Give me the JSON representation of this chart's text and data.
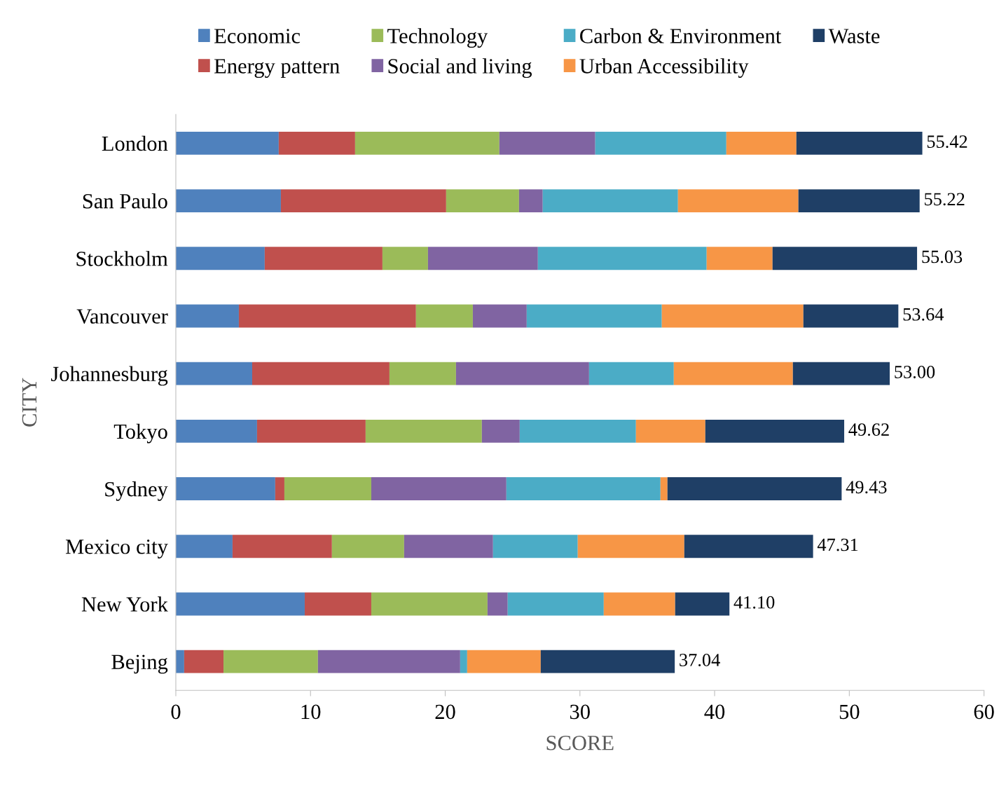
{
  "chart_data": {
    "type": "bar",
    "orientation": "horizontal",
    "stacked": true,
    "xlabel": "SCORE",
    "ylabel": "CITY",
    "categories": [
      "London",
      "San Paulo",
      "Stockholm",
      "Vancouver",
      "Johannesburg",
      "Tokyo",
      "Sydney",
      "Mexico city",
      "New York",
      "Bejing"
    ],
    "series": [
      {
        "name": "Economic",
        "color": "#4f81bd",
        "values": [
          7.64,
          7.8,
          6.6,
          4.68,
          5.67,
          6.03,
          7.38,
          4.21,
          9.57,
          0.62
        ]
      },
      {
        "name": "Energy pattern",
        "color": "#c0504d",
        "values": [
          5.67,
          12.27,
          8.74,
          13.15,
          10.19,
          8.06,
          0.68,
          7.38,
          4.94,
          2.92
        ]
      },
      {
        "name": "Technology",
        "color": "#9bbb59",
        "values": [
          10.71,
          5.41,
          3.38,
          4.22,
          4.94,
          8.63,
          6.45,
          5.36,
          8.63,
          7.01
        ]
      },
      {
        "name": "Social and living",
        "color": "#8064a2",
        "values": [
          7.12,
          1.76,
          8.16,
          4.0,
          9.88,
          2.81,
          10.03,
          6.6,
          1.5,
          10.56
        ]
      },
      {
        "name": "Carbon & Environment",
        "color": "#4bacc6",
        "values": [
          9.73,
          10.04,
          12.53,
          10.03,
          6.29,
          8.63,
          11.44,
          6.29,
          7.13,
          0.52
        ]
      },
      {
        "name": "Urban Accessibility",
        "color": "#f79646",
        "values": [
          5.2,
          8.94,
          4.89,
          10.51,
          8.84,
          5.15,
          0.52,
          7.91,
          5.3,
          5.46
        ]
      },
      {
        "name": "Waste",
        "color": "#1f3f66",
        "values": [
          9.35,
          9.0,
          10.73,
          7.05,
          7.19,
          10.31,
          12.93,
          9.56,
          4.03,
          9.95
        ]
      }
    ],
    "totals": [
      "55.42",
      "55.22",
      "55.03",
      "53.64",
      "53.00",
      "49.62",
      "49.43",
      "47.31",
      "41.10",
      "37.04"
    ],
    "xlim": [
      0,
      60
    ],
    "xticks": [
      0,
      10,
      20,
      30,
      40,
      50,
      60
    ],
    "grid": false,
    "legend": "top"
  }
}
